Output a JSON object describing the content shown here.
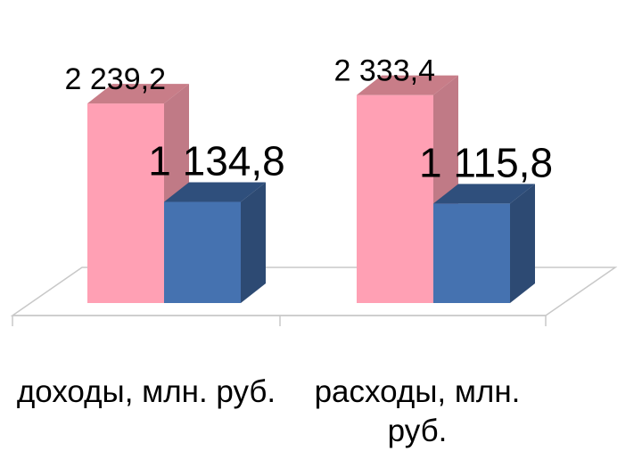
{
  "chart_data": {
    "type": "bar",
    "categories": [
      "доходы, млн. руб.",
      "расходы, млн. руб."
    ],
    "series": [
      {
        "values": [
          2239.2,
          2333.4
        ],
        "value_labels": [
          "2 239,2",
          "2 333,4"
        ],
        "color": "#ffa0b4",
        "top_color": "#c87d88",
        "side_color": "#c07a86"
      },
      {
        "values": [
          1134.8,
          1115.8
        ],
        "value_labels": [
          "1 134,8",
          "1 115,8"
        ],
        "color": "#4572b0",
        "top_color": "#2f4f7c",
        "side_color": "#2d4a73"
      }
    ],
    "three_d": true,
    "legend": "none",
    "grid": false
  }
}
